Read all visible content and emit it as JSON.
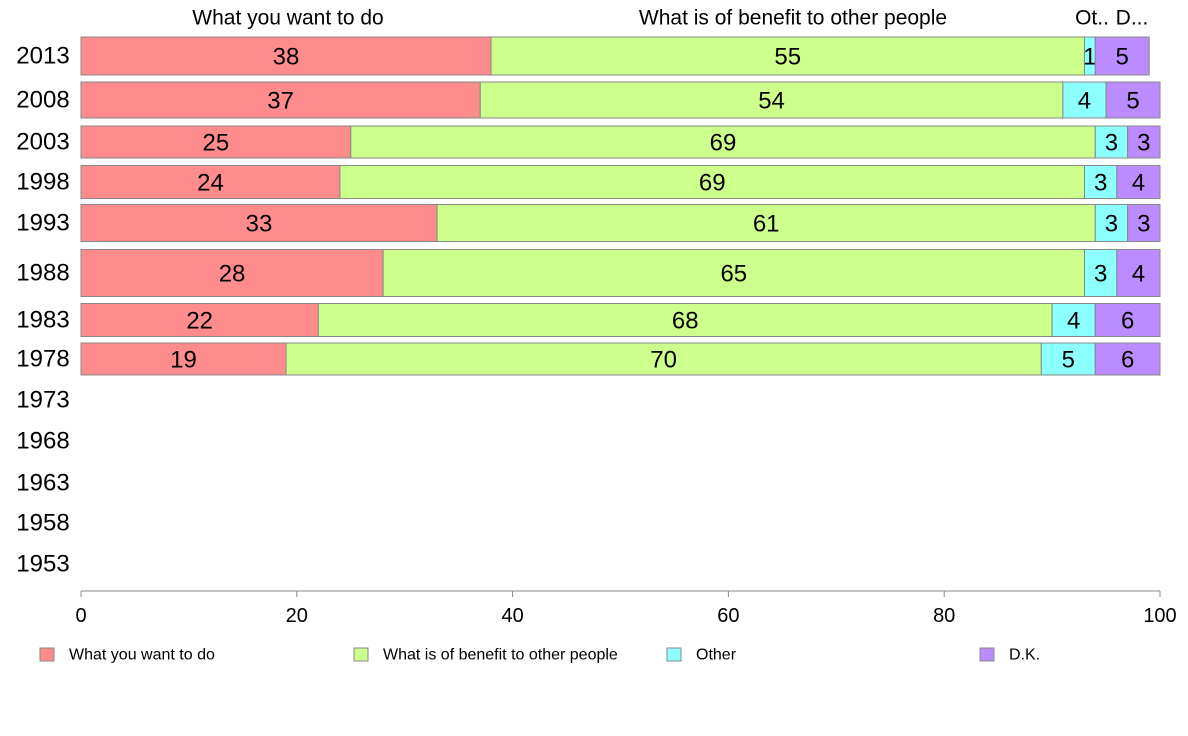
{
  "chart_data": {
    "type": "bar",
    "orientation": "horizontal",
    "stacked": true,
    "categories": [
      "2013",
      "2008",
      "2003",
      "1998",
      "1993",
      "1988",
      "1983",
      "1978",
      "1973",
      "1968",
      "1963",
      "1958",
      "1953"
    ],
    "series": [
      {
        "name": "What you want to do",
        "color": "#ff8c8c",
        "values": [
          38,
          37,
          25,
          24,
          33,
          28,
          22,
          19,
          null,
          null,
          null,
          null,
          null
        ]
      },
      {
        "name": "What is of benefit to other people",
        "color": "#ccff8c",
        "values": [
          55,
          54,
          69,
          69,
          61,
          65,
          68,
          70,
          null,
          null,
          null,
          null,
          null
        ]
      },
      {
        "name": "Other",
        "color": "#8cffff",
        "values": [
          1,
          4,
          3,
          3,
          3,
          3,
          4,
          5,
          null,
          null,
          null,
          null,
          null
        ]
      },
      {
        "name": "D.K.",
        "color": "#bb8cff",
        "values": [
          5,
          5,
          3,
          4,
          3,
          4,
          6,
          6,
          null,
          null,
          null,
          null,
          null
        ]
      }
    ],
    "column_headers": [
      "What you want to do",
      "What is of benefit to other people",
      "Ot..",
      "D..."
    ],
    "xlim": [
      0,
      100
    ],
    "xticks": [
      "0",
      "20",
      "40",
      "60",
      "80",
      "100"
    ],
    "grid": false,
    "legend_position": "bottom"
  }
}
